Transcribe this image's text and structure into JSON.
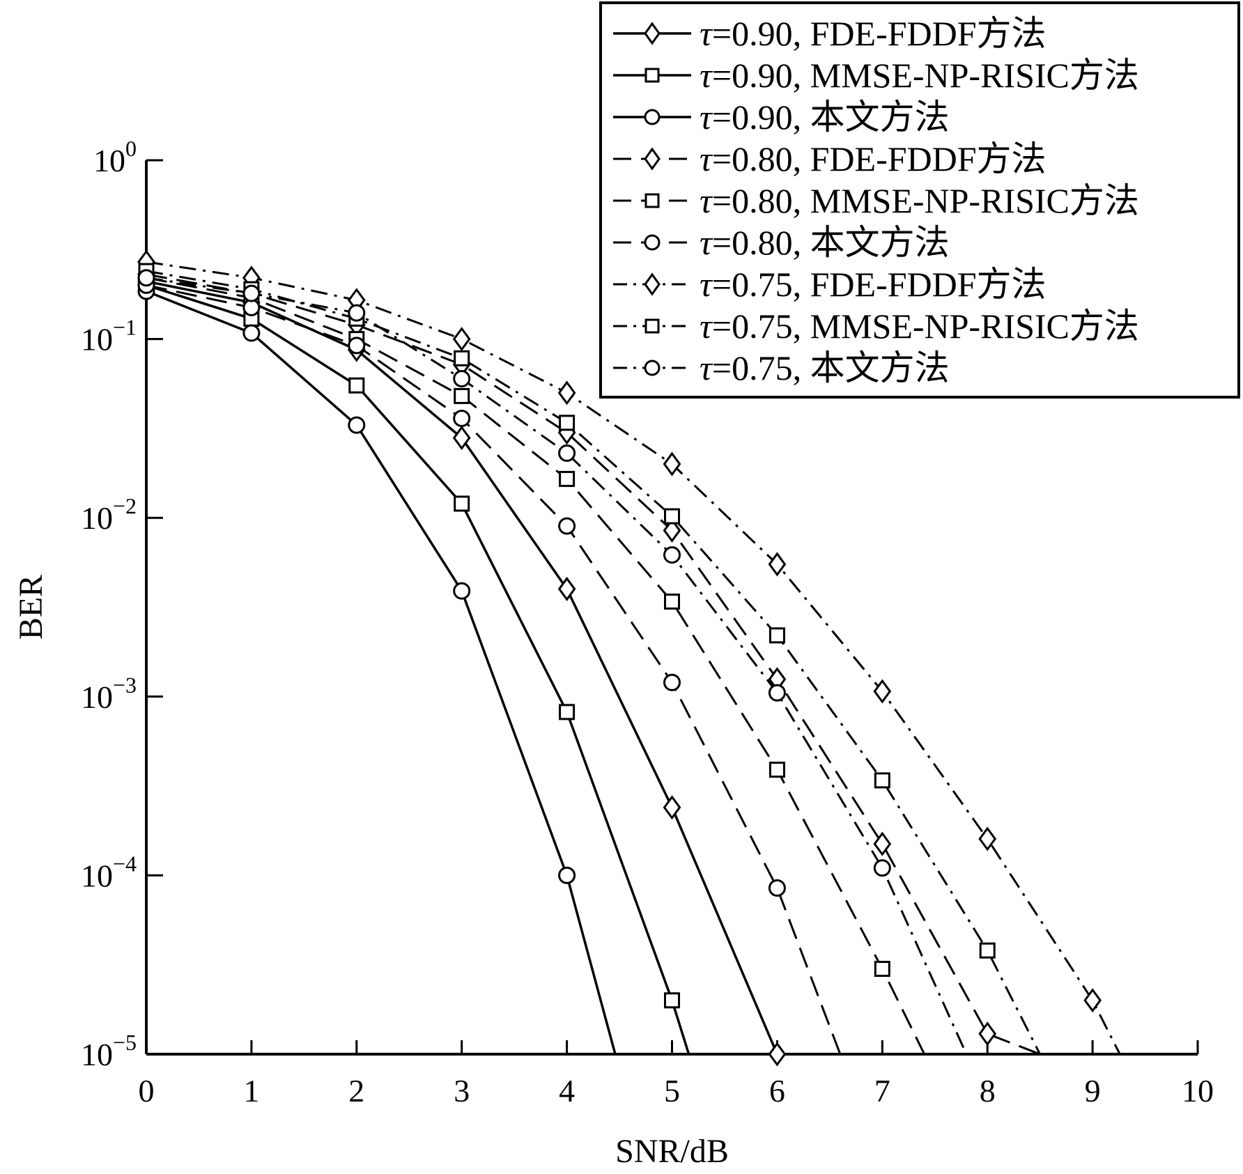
{
  "chart_data": {
    "type": "line",
    "title": "",
    "xlabel": "SNR/dB",
    "ylabel": "BER",
    "xlim": [
      0,
      10
    ],
    "ylim": [
      1e-05,
      1
    ],
    "yscale": "log",
    "grid": false,
    "legend_position": "top-right",
    "x_ticks": [
      "0",
      "1",
      "2",
      "3",
      "4",
      "5",
      "6",
      "7",
      "8",
      "9",
      "10"
    ],
    "y_ticks": [
      {
        "value": 1.0,
        "base": "10",
        "exp": "0"
      },
      {
        "value": 0.1,
        "base": "10",
        "exp": "−1"
      },
      {
        "value": 0.01,
        "base": "10",
        "exp": "−2"
      },
      {
        "value": 0.001,
        "base": "10",
        "exp": "−3"
      },
      {
        "value": 0.0001,
        "base": "10",
        "exp": "−4"
      },
      {
        "value": 1e-05,
        "base": "10",
        "exp": "−5"
      }
    ],
    "series": [
      {
        "tau": "τ",
        "label": "=0.90, FDE-FDDF方法",
        "marker": "diamond",
        "line": "solid",
        "x": [
          0,
          1,
          2,
          3,
          4,
          5,
          6
        ],
        "y": [
          0.21,
          0.16,
          0.087,
          0.028,
          0.004,
          0.00024,
          1e-05
        ]
      },
      {
        "tau": "τ",
        "label": "=0.90, MMSE-NP-RISIC方法",
        "marker": "square",
        "line": "solid",
        "x": [
          0,
          1,
          2,
          3,
          4,
          5,
          5.16
        ],
        "y": [
          0.2,
          0.13,
          0.055,
          0.012,
          0.00082,
          2e-05,
          1e-05
        ]
      },
      {
        "tau": "τ",
        "label": "=0.90, 本文方法",
        "marker": "circle",
        "line": "solid",
        "x": [
          0,
          1,
          2,
          3,
          4,
          4.46
        ],
        "y": [
          0.185,
          0.108,
          0.033,
          0.0039,
          0.0001,
          1e-05
        ]
      },
      {
        "tau": "τ",
        "label": "=0.80, FDE-FDDF方法",
        "marker": "diamond",
        "line": "dashed",
        "x": [
          0,
          1,
          2,
          3,
          4,
          5,
          6,
          7,
          8,
          8.5
        ],
        "y": [
          0.23,
          0.18,
          0.12,
          0.072,
          0.03,
          0.0085,
          0.00125,
          0.00015,
          1.3e-05,
          1e-05
        ]
      },
      {
        "tau": "τ",
        "label": "=0.80, MMSE-NP-RISIC方法",
        "marker": "square",
        "line": "dashed",
        "x": [
          0,
          1,
          2,
          3,
          4,
          5,
          6,
          7,
          7.4
        ],
        "y": [
          0.22,
          0.17,
          0.1,
          0.048,
          0.0165,
          0.0034,
          0.00039,
          3e-05,
          1e-05
        ]
      },
      {
        "tau": "τ",
        "label": "=0.80, 本文方法",
        "marker": "circle",
        "line": "dashed",
        "x": [
          0,
          1,
          2,
          3,
          4,
          5,
          6,
          6.6
        ],
        "y": [
          0.2,
          0.15,
          0.092,
          0.036,
          0.009,
          0.0012,
          8.5e-05,
          1e-05
        ]
      },
      {
        "tau": "τ",
        "label": "=0.75, FDE-FDDF方法",
        "marker": "diamond",
        "line": "dashdot",
        "x": [
          0,
          1,
          2,
          3,
          4,
          5,
          6,
          7,
          8,
          9,
          9.26
        ],
        "y": [
          0.27,
          0.22,
          0.165,
          0.1,
          0.05,
          0.02,
          0.0055,
          0.00107,
          0.00016,
          2e-05,
          1e-05
        ]
      },
      {
        "tau": "τ",
        "label": "=0.75, MMSE-NP-RISIC方法",
        "marker": "square",
        "line": "dashdot",
        "x": [
          0,
          1,
          2,
          3,
          4,
          5,
          6,
          7,
          8,
          8.5
        ],
        "y": [
          0.24,
          0.19,
          0.13,
          0.078,
          0.034,
          0.0102,
          0.0022,
          0.00034,
          3.8e-05,
          1e-05
        ]
      },
      {
        "tau": "τ",
        "label": "=0.75, 本文方法",
        "marker": "circle",
        "line": "dashdot",
        "x": [
          0,
          1,
          2,
          3,
          4,
          5,
          6,
          7,
          7.8
        ],
        "y": [
          0.22,
          0.18,
          0.14,
          0.06,
          0.023,
          0.0062,
          0.00105,
          0.00011,
          1e-05
        ]
      }
    ]
  }
}
